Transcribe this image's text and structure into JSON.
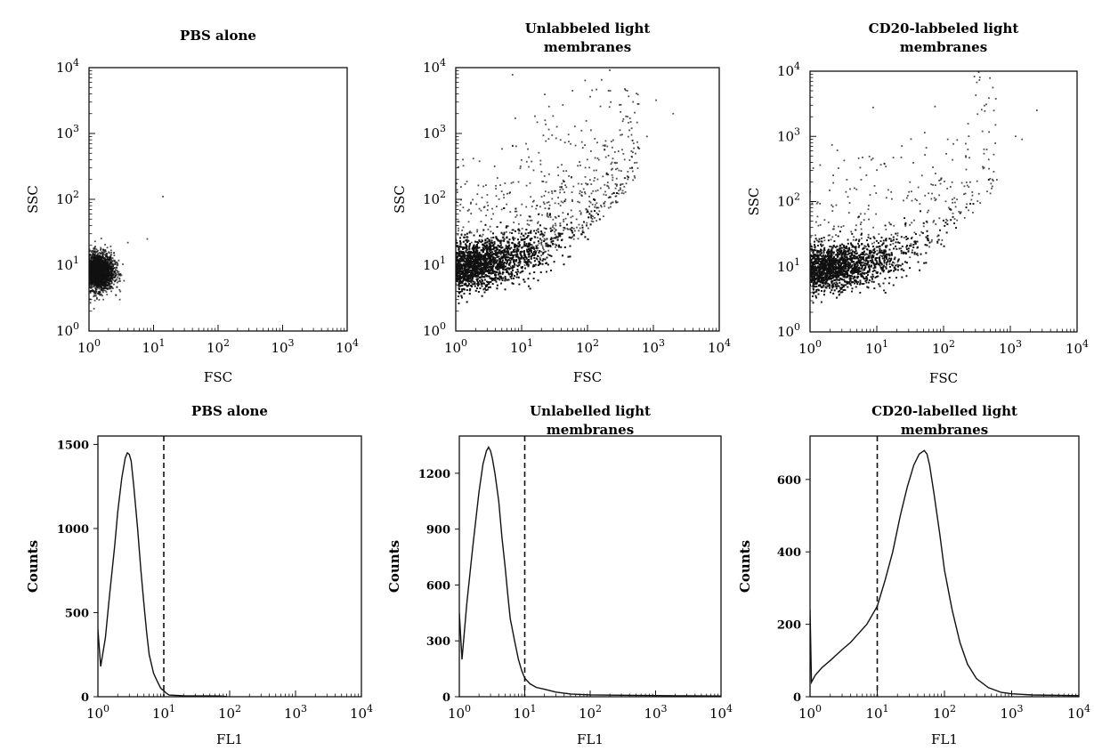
{
  "chart_data": [
    {
      "type": "scatter",
      "panel": "top-left",
      "title": "PBS alone",
      "xlabel": "FSC",
      "ylabel": "SSC",
      "xscale": "log",
      "yscale": "log",
      "xlim": [
        1,
        10000
      ],
      "ylim": [
        1,
        10000
      ],
      "xticks": [
        "10^0",
        "10^1",
        "10^2",
        "10^3",
        "10^4"
      ],
      "yticks": [
        "10^0",
        "10^1",
        "10^2",
        "10^3",
        "10^4"
      ],
      "grid": false,
      "clusters": [
        {
          "center": [
            1.4,
            8
          ],
          "spread_log10": [
            0.12,
            0.14
          ],
          "n": 2600
        }
      ],
      "outliers": [
        [
          14,
          110
        ],
        [
          8,
          25
        ],
        [
          4,
          22
        ],
        [
          3,
          3
        ]
      ]
    },
    {
      "type": "scatter",
      "panel": "top-middle",
      "title": "Unlabbeled light membranes",
      "xlabel": "FSC",
      "ylabel": "SSC",
      "xscale": "log",
      "yscale": "log",
      "xlim": [
        1,
        10000
      ],
      "ylim": [
        1,
        10000
      ],
      "xticks": [
        "10^0",
        "10^1",
        "10^2",
        "10^3",
        "10^4"
      ],
      "yticks": [
        "10^0",
        "10^1",
        "10^2",
        "10^3",
        "10^4"
      ],
      "grid": false,
      "trend": [
        [
          1,
          9
        ],
        [
          3,
          11
        ],
        [
          10,
          14
        ],
        [
          30,
          22
        ],
        [
          100,
          50
        ],
        [
          300,
          150
        ],
        [
          1000,
          700
        ]
      ],
      "spread_log10": 0.18,
      "n": 6500,
      "sparse_scatter_n": 700,
      "outliers": [
        [
          1100,
          3200
        ],
        [
          2000,
          2000
        ],
        [
          800,
          900
        ]
      ]
    },
    {
      "type": "scatter",
      "panel": "top-right",
      "title": "CD20-labbeled light membranes",
      "xlabel": "FSC",
      "ylabel": "SSC",
      "xscale": "log",
      "yscale": "log",
      "xlim": [
        1,
        10000
      ],
      "ylim": [
        1,
        10000
      ],
      "xticks": [
        "10^0",
        "10^1",
        "10^2",
        "10^3",
        "10^4"
      ],
      "yticks": [
        "10^0",
        "10^1",
        "10^2",
        "10^3",
        "10^4"
      ],
      "grid": false,
      "trend": [
        [
          1,
          9
        ],
        [
          3,
          10
        ],
        [
          10,
          12
        ],
        [
          30,
          18
        ],
        [
          100,
          40
        ],
        [
          300,
          110
        ],
        [
          1000,
          500
        ]
      ],
      "spread_log10": 0.17,
      "n": 5200,
      "sparse_scatter_n": 350,
      "outliers": [
        [
          2500,
          2500
        ],
        [
          1500,
          900
        ],
        [
          600,
          1500
        ],
        [
          1200,
          1000
        ]
      ]
    },
    {
      "type": "line",
      "panel": "bottom-left",
      "title": "PBS alone",
      "xlabel": "FL1",
      "ylabel": "Counts",
      "xscale": "log",
      "xlim": [
        1,
        10000
      ],
      "ylim": [
        0,
        1550
      ],
      "xticks": [
        "10^0",
        "10^1",
        "10^2",
        "10^3",
        "10^4"
      ],
      "yticks": [
        0,
        500,
        1000,
        1500
      ],
      "marker_line_x": 10,
      "marker_line_style": "dashed",
      "x": [
        1,
        1.1,
        1.3,
        1.5,
        1.8,
        2,
        2.3,
        2.6,
        2.8,
        3,
        3.2,
        3.5,
        4,
        4.5,
        5,
        5.5,
        6,
        7,
        8,
        9,
        10,
        11,
        12,
        15,
        20,
        30,
        50,
        70,
        80,
        90
      ],
      "values": [
        400,
        180,
        350,
        600,
        900,
        1100,
        1300,
        1420,
        1450,
        1440,
        1400,
        1250,
        1000,
        750,
        550,
        380,
        250,
        140,
        90,
        50,
        35,
        20,
        10,
        8,
        6,
        5,
        5,
        4,
        3,
        0
      ]
    },
    {
      "type": "line",
      "panel": "bottom-middle",
      "title": "Unlabelled light membranes",
      "xlabel": "FL1",
      "ylabel": "Counts",
      "xscale": "log",
      "xlim": [
        1,
        10000
      ],
      "ylim": [
        0,
        1400
      ],
      "xticks": [
        "10^0",
        "10^1",
        "10^2",
        "10^3",
        "10^4"
      ],
      "yticks": [
        0,
        300,
        600,
        900,
        1200
      ],
      "marker_line_x": 10,
      "marker_line_style": "dashed",
      "x": [
        1,
        1.1,
        1.3,
        1.6,
        2,
        2.3,
        2.6,
        2.8,
        3,
        3.2,
        3.5,
        4,
        4.5,
        5,
        5.5,
        6,
        7,
        8,
        9,
        10,
        12,
        15,
        20,
        30,
        50,
        100,
        300,
        1000,
        3000,
        10000
      ],
      "values": [
        450,
        200,
        500,
        800,
        1100,
        1250,
        1320,
        1340,
        1320,
        1280,
        1200,
        1050,
        850,
        700,
        550,
        420,
        300,
        200,
        140,
        100,
        70,
        50,
        40,
        25,
        15,
        10,
        8,
        6,
        5,
        4
      ]
    },
    {
      "type": "line",
      "panel": "bottom-right",
      "title": "CD20-labelled light membranes",
      "xlabel": "FL1",
      "ylabel": "Counts",
      "xscale": "log",
      "xlim": [
        1,
        10000
      ],
      "ylim": [
        0,
        720
      ],
      "xticks": [
        "10^0",
        "10^1",
        "10^2",
        "10^3",
        "10^4"
      ],
      "yticks": [
        0,
        200,
        400,
        600
      ],
      "marker_line_x": 10,
      "marker_line_style": "dashed",
      "x": [
        1,
        1.05,
        1.2,
        1.5,
        2,
        3,
        4,
        5,
        7,
        10,
        13,
        17,
        22,
        28,
        35,
        42,
        50,
        55,
        60,
        70,
        85,
        100,
        130,
        170,
        220,
        300,
        450,
        700,
        1000,
        2000,
        5000,
        10000
      ],
      "values": [
        240,
        40,
        60,
        80,
        100,
        130,
        150,
        170,
        200,
        250,
        320,
        400,
        500,
        580,
        640,
        670,
        680,
        670,
        640,
        560,
        450,
        350,
        240,
        150,
        90,
        50,
        25,
        12,
        8,
        5,
        4,
        3
      ]
    }
  ]
}
